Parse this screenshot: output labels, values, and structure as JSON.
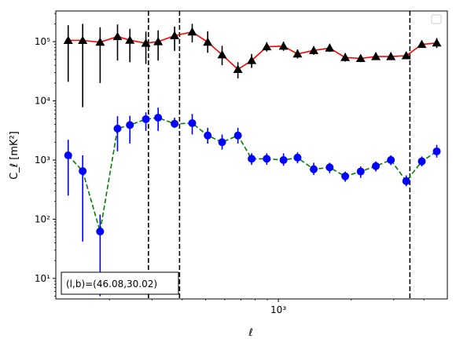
{
  "chart_data": {
    "type": "scatter",
    "xlabel": "ℓ",
    "ylabel": "C_ℓ  [mK²]",
    "xscale": "log",
    "yscale": "log",
    "xlim": [
      120,
      5000
    ],
    "ylim": [
      4.5,
      330000
    ],
    "x_ticks": [
      {
        "value": 1000,
        "label": "10³"
      }
    ],
    "y_ticks": [
      {
        "value": 10,
        "label": "10¹"
      },
      {
        "value": 100,
        "label": "10²"
      },
      {
        "value": 1000,
        "label": "10³"
      },
      {
        "value": 10000,
        "label": "10⁴"
      },
      {
        "value": 100000,
        "label": "10⁵"
      }
    ],
    "grid": false,
    "legend": "upper right (empty)",
    "annotation": "(l,b)=(46.08,30.02)",
    "vlines": [
      290,
      390,
      3500
    ],
    "series": [
      {
        "marker": "triangle",
        "color": "#000000",
        "line_color": "#ff0000",
        "line_style": "solid",
        "x": [
          135,
          155,
          183,
          216,
          243,
          283,
          318,
          372,
          440,
          510,
          585,
          680,
          775,
          895,
          1050,
          1200,
          1400,
          1630,
          1890,
          2190,
          2530,
          2920,
          3380,
          3920,
          4520
        ],
        "y": [
          105000,
          105000,
          98000,
          122000,
          106000,
          94000,
          100000,
          126000,
          146000,
          98000,
          60000,
          34000,
          48000,
          82000,
          84000,
          62000,
          71000,
          78000,
          54000,
          52000,
          56000,
          56000,
          58000,
          90000,
          95000
        ],
        "err_low": [
          21000,
          7800,
          20000,
          48000,
          45000,
          42000,
          48000,
          70000,
          97000,
          65000,
          40000,
          24000,
          36000,
          68000,
          70000,
          52000,
          60000,
          67000,
          46000,
          45000,
          49000,
          49000,
          52000,
          80000,
          78000
        ],
        "err_high": [
          190000,
          200000,
          175000,
          195000,
          165000,
          148000,
          155000,
          180000,
          200000,
          150000,
          85000,
          45000,
          62000,
          98000,
          100000,
          74000,
          84000,
          92000,
          64000,
          60000,
          66000,
          66000,
          66000,
          100000,
          115000
        ]
      },
      {
        "marker": "circle",
        "color": "#0000ff",
        "line_color": "#008000",
        "line_style": "dashed",
        "x": [
          135,
          155,
          183,
          216,
          243,
          283,
          318,
          372,
          440,
          510,
          585,
          680,
          775,
          895,
          1050,
          1200,
          1400,
          1630,
          1890,
          2190,
          2530,
          2920,
          3380,
          3920,
          4520
        ],
        "y": [
          1200,
          650,
          62,
          3400,
          3900,
          4900,
          5200,
          4100,
          4200,
          2600,
          2000,
          2600,
          1050,
          1050,
          1000,
          1100,
          700,
          750,
          530,
          640,
          790,
          1000,
          440,
          950,
          1400
        ],
        "err_low": [
          250,
          42,
          5,
          1400,
          1900,
          3100,
          3100,
          3500,
          2700,
          1900,
          1500,
          1900,
          830,
          830,
          800,
          880,
          560,
          600,
          430,
          500,
          640,
          820,
          360,
          780,
          1100
        ],
        "err_high": [
          2200,
          1200,
          120,
          5500,
          5600,
          6400,
          7700,
          5200,
          6000,
          3500,
          2700,
          3500,
          1300,
          1300,
          1300,
          1350,
          900,
          900,
          640,
          780,
          950,
          1200,
          550,
          1150,
          1800
        ]
      }
    ]
  }
}
